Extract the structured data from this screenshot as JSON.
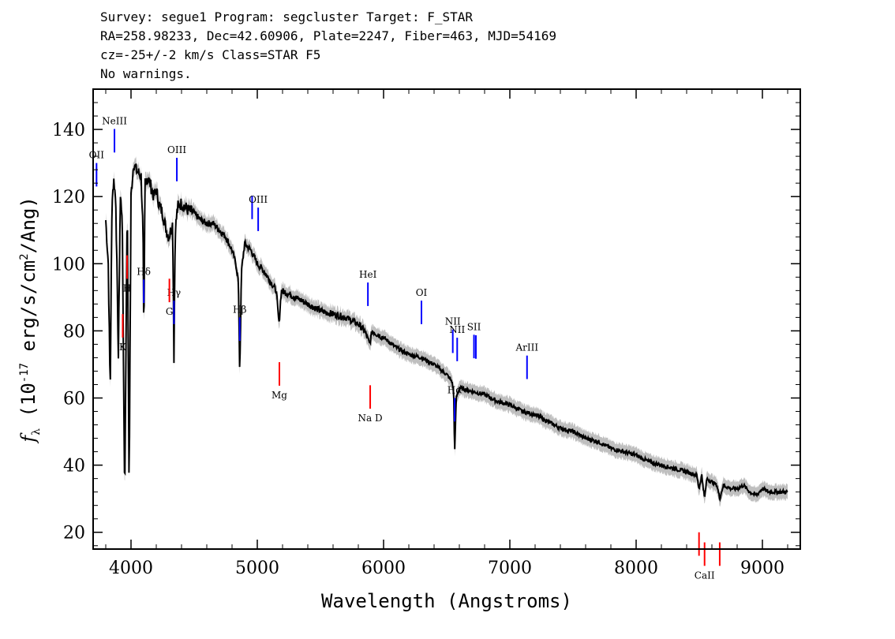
{
  "header": {
    "line1": "Survey: segue1 Program: segcluster Target: F_STAR",
    "line2": "RA=258.98233, Dec=42.60906, Plate=2247, Fiber=463, MJD=54169",
    "line3": "cz=-25+/-2 km/s Class=STAR F5",
    "line4": "No warnings."
  },
  "chart_data": {
    "type": "line",
    "xlabel": "Wavelength (Angstroms)",
    "ylabel": "f_λ (10^-17 erg/s/cm^2/Ang)",
    "xlim": [
      3700,
      9300
    ],
    "ylim": [
      15,
      152
    ],
    "xticks": [
      4000,
      5000,
      6000,
      7000,
      8000,
      9000
    ],
    "yticks": [
      20,
      40,
      60,
      80,
      100,
      120,
      140
    ],
    "colors": {
      "flux": "#000000",
      "error_band": "#bfbfbf",
      "emission": "#0000ff",
      "absorption": "#ff0000"
    },
    "series": [
      {
        "x": [
          3800,
          3820,
          3835,
          3850,
          3865,
          3880,
          3890,
          3900,
          3915,
          3930,
          3950,
          3970,
          3985,
          4000,
          4020,
          4040,
          4060,
          4080,
          4095,
          4102,
          4110,
          4130,
          4150,
          4180,
          4200,
          4220,
          4250,
          4280,
          4300,
          4330,
          4340,
          4350,
          4370,
          4400,
          4450,
          4500,
          4550,
          4600,
          4650,
          4700,
          4750,
          4800,
          4830,
          4850,
          4861,
          4875,
          4900,
          4950,
          5000,
          5050,
          5100,
          5150,
          5172,
          5190,
          5250,
          5300,
          5400,
          5500,
          5600,
          5700,
          5800,
          5850,
          5890,
          5910,
          5950,
          6000,
          6100,
          6200,
          6300,
          6400,
          6500,
          6540,
          6555,
          6563,
          6575,
          6600,
          6700,
          6800,
          6900,
          7000,
          7100,
          7200,
          7300,
          7400,
          7500,
          7600,
          7700,
          7800,
          7900,
          8000,
          8100,
          8200,
          8300,
          8400,
          8480,
          8498,
          8520,
          8542,
          8560,
          8600,
          8640,
          8662,
          8690,
          8750,
          8800,
          8850,
          8900,
          8950,
          9000,
          9050,
          9100,
          9150,
          9200
        ],
        "y": [
          113,
          100,
          62,
          120,
          125,
          118,
          95,
          72,
          120,
          115,
          30,
          120,
          32,
          120,
          130,
          128,
          127,
          126,
          110,
          73,
          124,
          126,
          124,
          120,
          122,
          118,
          115,
          110,
          108,
          112,
          72,
          110,
          117,
          118,
          116,
          115,
          113,
          112,
          112,
          110,
          108,
          104,
          100,
          95,
          67,
          98,
          106,
          104,
          100,
          98,
          95,
          92,
          82,
          92,
          91,
          90,
          88,
          86,
          85,
          84,
          82,
          80,
          76,
          80,
          79,
          78,
          75,
          73,
          72,
          70,
          67,
          65,
          62,
          43,
          60,
          63,
          62,
          61,
          59,
          58,
          56,
          55,
          53,
          51,
          50,
          48,
          47,
          45,
          44,
          43,
          41,
          40,
          39,
          38,
          37,
          33,
          37,
          30,
          36,
          35,
          34,
          30,
          34,
          33,
          33,
          34,
          32,
          31,
          33,
          32,
          32,
          32,
          32
        ]
      }
    ],
    "emission_lines": [
      {
        "x": 3727,
        "label": "OII"
      },
      {
        "x": 3869,
        "label": "NeIII"
      },
      {
        "x": 4101,
        "label": "Hδ"
      },
      {
        "x": 4340,
        "label": "Hγ"
      },
      {
        "x": 4363,
        "label": "OIII"
      },
      {
        "x": 4861,
        "label": "Hβ"
      },
      {
        "x": 4959,
        "label": ""
      },
      {
        "x": 5007,
        "label": "OIII"
      },
      {
        "x": 5876,
        "label": "HeI"
      },
      {
        "x": 6300,
        "label": "OI"
      },
      {
        "x": 6548,
        "label": "NII"
      },
      {
        "x": 6563,
        "label": "Hα"
      },
      {
        "x": 6583,
        "label": "NII"
      },
      {
        "x": 6716,
        "label": "SII"
      },
      {
        "x": 6731,
        "label": ""
      },
      {
        "x": 7136,
        "label": "ArIII"
      }
    ],
    "absorption_lines": [
      {
        "x": 3934,
        "label": "K"
      },
      {
        "x": 3969,
        "label": "H"
      },
      {
        "x": 4304,
        "label": "G"
      },
      {
        "x": 5175,
        "label": "Mg"
      },
      {
        "x": 5894,
        "label": "Na D"
      },
      {
        "x": 8498,
        "label": ""
      },
      {
        "x": 8542,
        "label": "CaII"
      },
      {
        "x": 8662,
        "label": ""
      }
    ]
  }
}
